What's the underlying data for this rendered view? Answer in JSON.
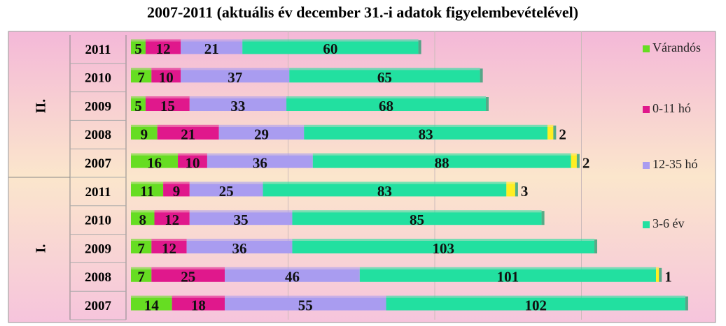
{
  "chart_data": {
    "type": "stacked-bar-horizontal",
    "title": "2007-2011 (aktuális év december 31.-i adatok figyelembevételével)",
    "groups": [
      "II.",
      "I."
    ],
    "categories": [
      "2011",
      "2010",
      "2009",
      "2008",
      "2007",
      "2011",
      "2010",
      "2009",
      "2008",
      "2007"
    ],
    "series": [
      {
        "name": "Várandós",
        "color": "#66dd22",
        "values": [
          5,
          7,
          5,
          9,
          16,
          11,
          8,
          7,
          7,
          14
        ]
      },
      {
        "name": "0-11 hó",
        "color": "#e0188c",
        "values": [
          12,
          10,
          15,
          21,
          10,
          9,
          12,
          12,
          25,
          18
        ]
      },
      {
        "name": "12-35 hó",
        "color": "#a99cf0",
        "values": [
          21,
          37,
          33,
          29,
          36,
          25,
          35,
          36,
          46,
          55
        ]
      },
      {
        "name": "3-6 év",
        "color": "#22e0a0",
        "values": [
          60,
          65,
          68,
          83,
          88,
          83,
          85,
          103,
          101,
          102
        ]
      },
      {
        "color": "#ffee22",
        "values": [
          null,
          null,
          null,
          2,
          2,
          3,
          null,
          null,
          1,
          null
        ]
      }
    ],
    "xlim": [
      0,
      200
    ],
    "legend": "right"
  }
}
